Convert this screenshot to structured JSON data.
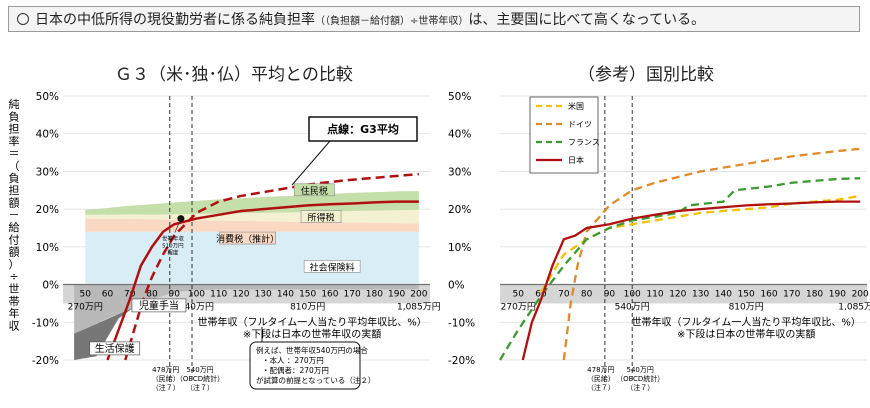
{
  "banner": {
    "main": "日本の中低所得の現役勤労者に係る純負担率",
    "paren": "（（負担額－給付額）÷世帯年収）",
    "tail": "は、主要国に比べて高くなっている。"
  },
  "colors": {
    "japan": "#b01010",
    "usa": "#f2c200",
    "germany": "#e08a2e",
    "france": "#3c9a35",
    "social": "#d9edf7",
    "consumption": "#fad9c4",
    "income": "#f4f1d2",
    "resident": "#c5dfaa",
    "child": "#b9b9b9",
    "welfare": "#777777",
    "belt": "#d6d6d6"
  },
  "chart_data": [
    {
      "type": "area",
      "title": "Ｇ３（米･独･仏）平均との比較",
      "ylabel": "純負担率＝（負担額－給付額）÷世帯年収",
      "xlabel": "世帯年収（フルタイム一人当たり平均年収比、%）",
      "xnote": "※下段は日本の世帯年収の実額",
      "xlim": [
        40,
        205
      ],
      "ylim": [
        -20,
        50
      ],
      "x_ticks": [
        50,
        60,
        70,
        80,
        90,
        100,
        110,
        120,
        130,
        140,
        150,
        160,
        170,
        180,
        190,
        200
      ],
      "y_ticks_left": [
        "50%",
        "40%",
        "30%",
        "20%",
        "10%",
        "0%",
        "-10%",
        "-20%"
      ],
      "y_ticks_right": [
        "50%",
        "40%",
        "30%",
        "20%",
        "10%",
        "0%",
        "-10%",
        "-20%"
      ],
      "yen_labels": [
        {
          "x": 50,
          "label": "270万円"
        },
        {
          "x": 100,
          "label": "540万円"
        },
        {
          "x": 150,
          "label": "810万円"
        },
        {
          "x": 200,
          "label": "1,085万円"
        }
      ],
      "x": [
        50,
        60,
        70,
        80,
        90,
        100,
        110,
        120,
        130,
        140,
        150,
        160,
        170,
        180,
        190,
        200
      ],
      "stack": [
        {
          "name": "社会保険料",
          "values": [
            14,
            14,
            14,
            14,
            14,
            14,
            14,
            14,
            14,
            14,
            14,
            14,
            14,
            14,
            14,
            14
          ]
        },
        {
          "name": "消費税（推計）",
          "values": [
            3.5,
            3.5,
            3.5,
            3.3,
            3.2,
            3.1,
            3,
            2.9,
            2.8,
            2.7,
            2.6,
            2.5,
            2.5,
            2.4,
            2.3,
            2.2
          ]
        },
        {
          "name": "所得税",
          "values": [
            1,
            1,
            1.1,
            1.2,
            1.4,
            1.6,
            1.8,
            2,
            2.2,
            2.4,
            2.6,
            2.8,
            3,
            3.2,
            3.4,
            3.6
          ]
        },
        {
          "name": "住民税",
          "values": [
            1.3,
            1.8,
            2.3,
            2.8,
            3.2,
            3.5,
            3.8,
            4,
            4.2,
            4.4,
            4.5,
            4.7,
            4.8,
            4.9,
            5,
            5
          ]
        }
      ],
      "benefits": [
        {
          "name": "児童手当",
          "x": [
            45,
            60,
            70,
            80,
            90,
            100,
            110,
            200
          ],
          "values": [
            -13,
            -9,
            -6.5,
            -4,
            -2,
            -1.5,
            -1.3,
            -1.3
          ]
        },
        {
          "name": "生活保護",
          "x": [
            45,
            55,
            60,
            65,
            72
          ],
          "values": [
            -20,
            -19,
            -14,
            -9,
            -6
          ]
        }
      ],
      "series": [
        {
          "name": "日本",
          "x": [
            60,
            65,
            70,
            75,
            80,
            85,
            90,
            100,
            110,
            120,
            130,
            140,
            150,
            160,
            170,
            180,
            190,
            200
          ],
          "values": [
            -20,
            -12,
            -4,
            5,
            10,
            14,
            16,
            17.5,
            18.5,
            19.5,
            20,
            20.5,
            21,
            21.3,
            21.5,
            21.8,
            22,
            22
          ]
        },
        {
          "name": "点線：G3平均",
          "dashed": true,
          "x": [
            68,
            72,
            76,
            80,
            85,
            90,
            100,
            110,
            120,
            130,
            140,
            150,
            160,
            170,
            180,
            190,
            200
          ],
          "values": [
            -20,
            -12,
            -4,
            2,
            8,
            13,
            19,
            22,
            23.5,
            24.5,
            25.5,
            26.5,
            27.2,
            27.8,
            28.3,
            28.8,
            29.3
          ]
        }
      ],
      "vlines": [
        {
          "x": 88,
          "top": [
            "478万円",
            "（民給）",
            "（注７）"
          ]
        },
        {
          "x": 98,
          "top": [
            "540万円",
            "（OECD統計）",
            "（注７）"
          ]
        }
      ],
      "marker": {
        "x": 93,
        "y": 17.5,
        "label": [
          "世帯年収",
          "510万円",
          "程度"
        ]
      },
      "annotations": {
        "g3_box": "点線：G3平均",
        "example": [
          "例えば、世帯年収540万円の場合",
          "・本人 ：270万円",
          "・配偶者：270万円",
          "が試算の前提となっている（注２）"
        ]
      }
    },
    {
      "type": "line",
      "title": "（参考）国別比較",
      "xlabel": "世帯年収（フルタイム一人当たり平均年収比、%）",
      "xnote": "※下段は日本の世帯年収の実額",
      "xlim": [
        42,
        203
      ],
      "ylim": [
        -20,
        50
      ],
      "x_ticks": [
        50,
        60,
        70,
        80,
        90,
        100,
        110,
        120,
        130,
        140,
        150,
        160,
        170,
        180,
        190,
        200
      ],
      "yen_labels": [
        {
          "x": 50,
          "label": "270万円"
        },
        {
          "x": 100,
          "label": "540万円"
        },
        {
          "x": 150,
          "label": "810万円"
        },
        {
          "x": 200,
          "label": "1,085万円"
        }
      ],
      "series": [
        {
          "name": "米国",
          "dashed": true,
          "x": [
            60,
            65,
            70,
            80,
            90,
            100,
            110,
            120,
            130,
            140,
            150,
            160,
            170,
            180,
            190,
            200
          ],
          "values": [
            -2,
            3,
            8,
            12,
            15,
            16,
            17,
            18,
            19,
            19.5,
            20,
            20.5,
            21.5,
            22,
            22.5,
            23.5
          ]
        },
        {
          "name": "ドイツ",
          "dashed": true,
          "x": [
            70,
            73,
            76,
            80,
            90,
            100,
            110,
            120,
            130,
            140,
            150,
            160,
            170,
            180,
            190,
            200
          ],
          "values": [
            -20,
            -5,
            5,
            14,
            21,
            25,
            27,
            28.5,
            30,
            31,
            32,
            33,
            34,
            34.7,
            35.4,
            36
          ]
        },
        {
          "name": "フランス",
          "dashed": true,
          "x": [
            42,
            50,
            60,
            70,
            80,
            90,
            100,
            110,
            120,
            125,
            140,
            145,
            160,
            170,
            180,
            190,
            200
          ],
          "values": [
            -20,
            -12,
            -3,
            5,
            12,
            15,
            17,
            18,
            19,
            21,
            22,
            25,
            26,
            27,
            27.5,
            28,
            28.2
          ]
        },
        {
          "name": "日本",
          "x": [
            52,
            56,
            60,
            65,
            70,
            75,
            80,
            85,
            90,
            100,
            110,
            120,
            130,
            140,
            150,
            160,
            170,
            180,
            190,
            200
          ],
          "values": [
            -20,
            -10,
            -4,
            5,
            12,
            13,
            15,
            15.5,
            16,
            17.5,
            18.5,
            19.5,
            20,
            20.5,
            21,
            21.3,
            21.5,
            21.8,
            22,
            22
          ]
        }
      ],
      "legend": [
        "米国",
        "ドイツ",
        "フランス",
        "日本"
      ],
      "vlines": [
        {
          "x": 88,
          "top": [
            "478万円",
            "（民給）",
            "（注７）"
          ]
        },
        {
          "x": 100,
          "top": [
            "540万円",
            "（OECD統計）",
            "（注７）"
          ]
        }
      ]
    }
  ]
}
